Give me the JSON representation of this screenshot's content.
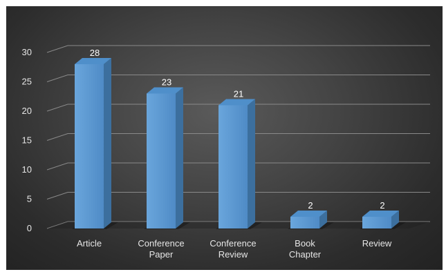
{
  "chart_data": {
    "type": "bar",
    "categories": [
      "Article",
      "Conference Paper",
      "Conference Review",
      "Book Chapter",
      "Review"
    ],
    "category_lines": [
      [
        "Article"
      ],
      [
        "Conference",
        "Paper"
      ],
      [
        "Conference",
        "Review"
      ],
      [
        "Book",
        "Chapter"
      ],
      [
        "Review"
      ]
    ],
    "values": [
      28,
      23,
      21,
      2,
      2
    ],
    "data_labels": [
      "28",
      "23",
      "21",
      "2",
      "2"
    ],
    "title": "",
    "xlabel": "",
    "ylabel": "",
    "ylim": [
      0,
      30
    ],
    "yticks": [
      0,
      5,
      10,
      15,
      20,
      25,
      30
    ],
    "ytick_labels": [
      "0",
      "5",
      "10",
      "15",
      "20",
      "25",
      "30"
    ],
    "grid": true,
    "legend": "none",
    "style": "3d-column"
  },
  "colors": {
    "bar_front": "#5b9bd5",
    "bar_top": "#4f8fca",
    "bar_side": "#3c6f9e",
    "gridline": "#8a8a8a",
    "text": "#e6e6e6",
    "background": "#3a3a3a"
  }
}
